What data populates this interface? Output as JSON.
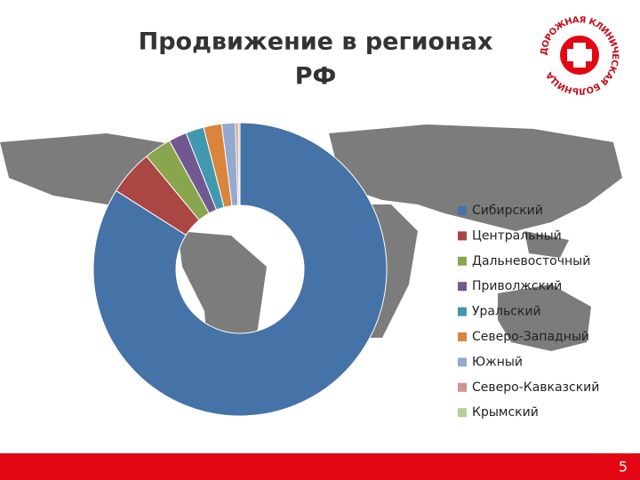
{
  "chart_data": {
    "type": "donut",
    "title": "Продвижение в регионах РФ",
    "categories": [
      "Сибирский",
      "Центральный",
      "Дальневосточный",
      "Приволжский",
      "Уральский",
      "Северо-Западный",
      "Южный",
      "Северо-Кавказский",
      "Крымский"
    ],
    "values": [
      84,
      5,
      3,
      2,
      2,
      2,
      1.5,
      0.3,
      0.2
    ],
    "colors": [
      "#4572a7",
      "#aa4643",
      "#89a54e",
      "#71588f",
      "#4198af",
      "#db843d",
      "#93a9cf",
      "#d19392",
      "#b9cd96"
    ],
    "legend": "right"
  },
  "logo_text": "ДОРОЖНАЯ КЛИНИЧЕСКАЯ БОЛЬНИЦА",
  "page_number": "5"
}
